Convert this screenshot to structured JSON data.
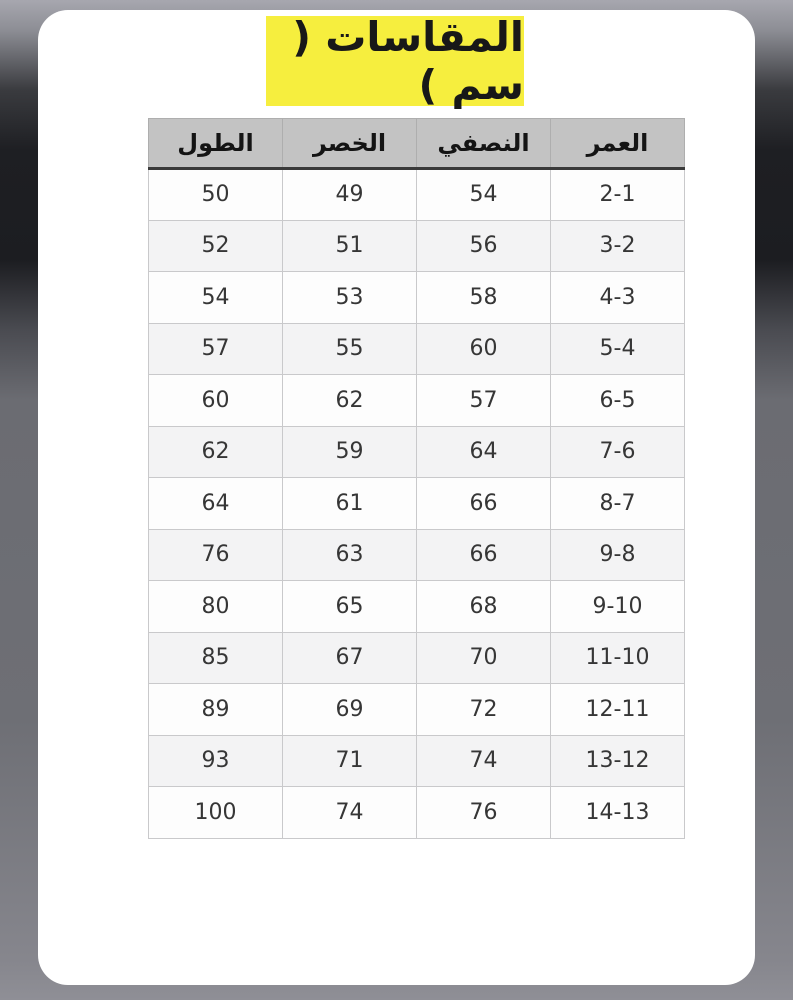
{
  "title": {
    "text": "المقاسات ( سم )",
    "highlight_color": "#f6ee3e"
  },
  "table": {
    "columns": [
      {
        "id": "length",
        "label": "الطول"
      },
      {
        "id": "waist",
        "label": "الخصر"
      },
      {
        "id": "half",
        "label": "النصفي"
      },
      {
        "id": "age",
        "label": "العمر"
      }
    ],
    "rows": [
      [
        "50",
        "49",
        "54",
        "2-1"
      ],
      [
        "52",
        "51",
        "56",
        "3-2"
      ],
      [
        "54",
        "53",
        "58",
        "4-3"
      ],
      [
        "57",
        "55",
        "60",
        "5-4"
      ],
      [
        "60",
        "62",
        "57",
        "6-5"
      ],
      [
        "62",
        "59",
        "64",
        "7-6"
      ],
      [
        "64",
        "61",
        "66",
        "8-7"
      ],
      [
        "76",
        "63",
        "66",
        "9-8"
      ],
      [
        "80",
        "65",
        "68",
        "9-10"
      ],
      [
        "85",
        "67",
        "70",
        "11-10"
      ],
      [
        "89",
        "69",
        "72",
        "12-11"
      ],
      [
        "93",
        "71",
        "74",
        "13-12"
      ],
      [
        "100",
        "74",
        "76",
        "14-13"
      ]
    ],
    "header_bg": "#c3c3c3",
    "row_alt_bg": "#f3f3f4"
  }
}
